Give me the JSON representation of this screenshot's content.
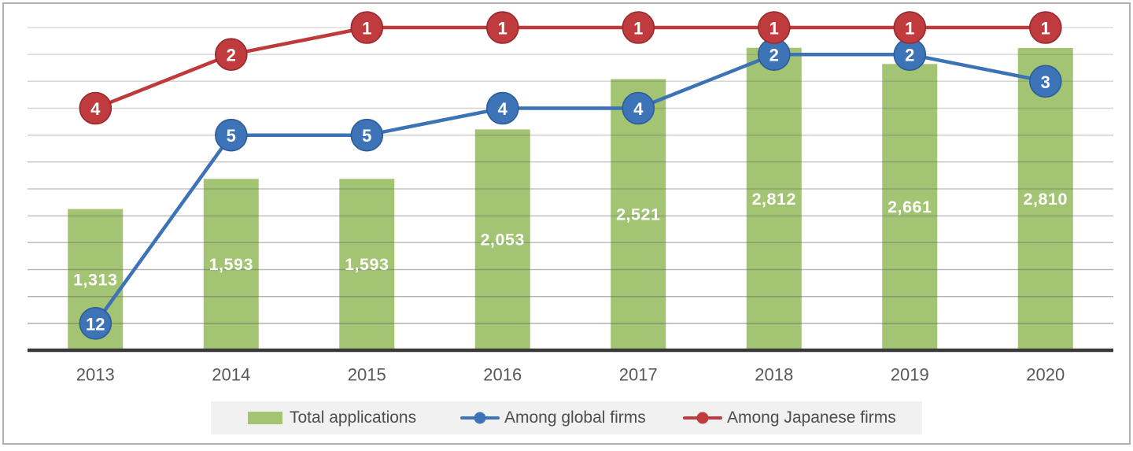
{
  "frame": {
    "border_color": "#b0b0b0",
    "background": "#ffffff"
  },
  "chart_data": {
    "type": "combo-bar-line",
    "title": "",
    "xlabel": "",
    "ylabel": "",
    "categories": [
      "2013",
      "2014",
      "2015",
      "2016",
      "2017",
      "2018",
      "2019",
      "2020"
    ],
    "series": [
      {
        "name": "Total applications",
        "type": "bar",
        "axis": "left",
        "color": "#a3c473",
        "values": [
          1313,
          1593,
          1593,
          2053,
          2521,
          2812,
          2661,
          2810
        ],
        "value_labels": [
          "1,313",
          "1,593",
          "1,593",
          "2,053",
          "2,521",
          "2,812",
          "2,661",
          "2,810"
        ],
        "label_color": "#ffffff",
        "label_position": "inside-center"
      },
      {
        "name": "Among global firms",
        "type": "line",
        "axis": "rank-right",
        "color": "#3c73b6",
        "marker_fill": "#3d74b8",
        "marker_edge": "#2d5c98",
        "values": [
          12,
          5,
          5,
          4,
          4,
          2,
          2,
          3
        ]
      },
      {
        "name": "Among Japanese firms",
        "type": "line",
        "axis": "rank-right",
        "color": "#bf3a3d",
        "marker_fill": "#c03b3d",
        "marker_edge": "#97292c",
        "values": [
          4,
          2,
          1,
          1,
          1,
          1,
          1,
          1
        ]
      }
    ],
    "axes": {
      "left": {
        "min": 0,
        "max": 3000,
        "gridline_step": 250,
        "labels_visible": false
      },
      "right": {
        "type": "rank",
        "min": 1,
        "max": 13,
        "inverted": true,
        "labels_visible": false
      }
    },
    "grid": {
      "horizontal": true,
      "gray": 105,
      "alpha_top": 0.22,
      "alpha_bottom": 0.53
    },
    "axis_line_color": "#3a3a3a",
    "x_label_color": "#595959",
    "legend": {
      "position": "bottom",
      "background": "#f1f1f1",
      "items": [
        {
          "label": "Total applications",
          "swatch": "bar",
          "color": "#a3c473"
        },
        {
          "label": "Among global firms",
          "swatch": "line-dot",
          "color": "#3d74b8"
        },
        {
          "label": "Among Japanese firms",
          "swatch": "line-dot",
          "color": "#c03b3d"
        }
      ]
    }
  }
}
